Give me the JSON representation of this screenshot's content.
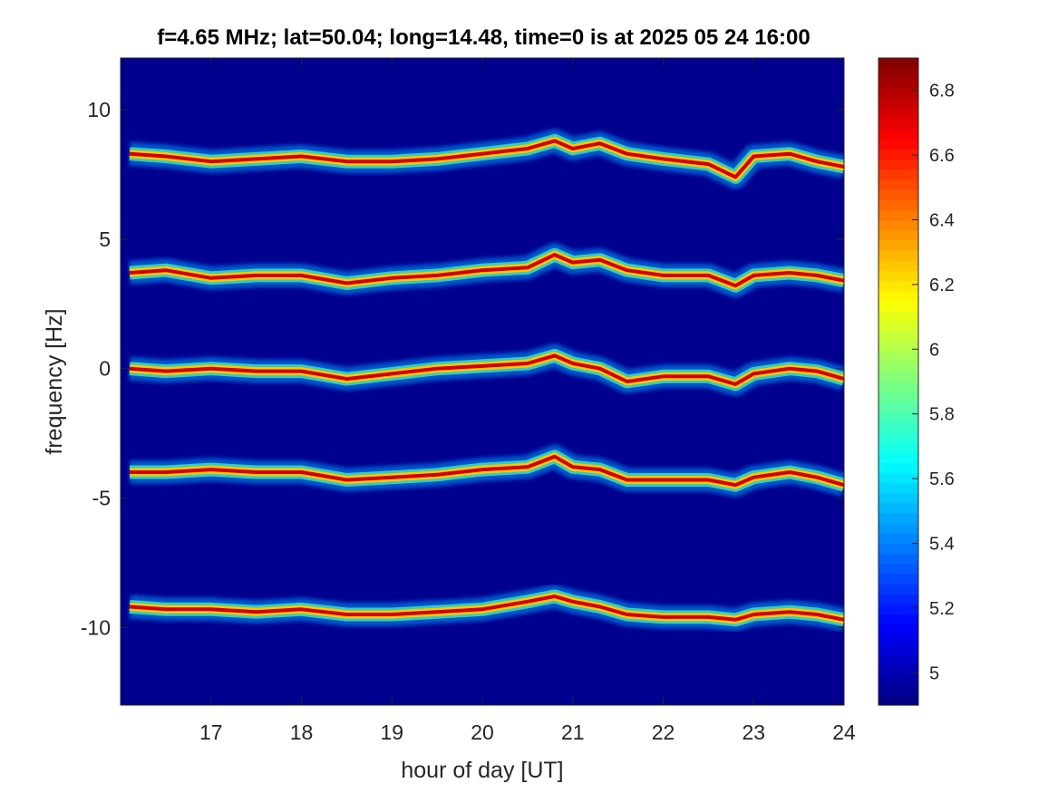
{
  "chart_data": {
    "type": "heatmap",
    "title": "f=4.65 MHz;  lat=50.04; long=14.48, time=0 is at 2025 05 24 16:00",
    "xlabel": "hour of day [UT]",
    "ylabel": "frequency [Hz]",
    "xlim": [
      16,
      24
    ],
    "ylim": [
      -13,
      12
    ],
    "xticks": [
      17,
      18,
      19,
      20,
      21,
      22,
      23,
      24
    ],
    "yticks": [
      10,
      5,
      0,
      -5,
      -10
    ],
    "colormap": "jet",
    "background_color": "#00008f",
    "colorbar": {
      "range": [
        4.9,
        6.9
      ],
      "ticks": [
        6.8,
        6.6,
        6.4,
        6.2,
        6,
        5.8,
        5.6,
        5.4,
        5.2,
        5
      ]
    },
    "traces": [
      {
        "name": "",
        "x": [
          16.1,
          16.5,
          17,
          17.5,
          18,
          18.5,
          19,
          19.5,
          20,
          20.5,
          20.8,
          21,
          21.3,
          21.6,
          22,
          22.5,
          22.8,
          23,
          23.4,
          23.7,
          24
        ],
        "y": [
          8.3,
          8.2,
          8.0,
          8.1,
          8.2,
          8.0,
          8.0,
          8.1,
          8.3,
          8.5,
          8.8,
          8.5,
          8.7,
          8.3,
          8.1,
          7.9,
          7.4,
          8.2,
          8.3,
          8.0,
          7.8
        ]
      },
      {
        "name": "",
        "x": [
          16.1,
          16.5,
          17,
          17.5,
          18,
          18.5,
          19,
          19.5,
          20,
          20.5,
          20.8,
          21,
          21.3,
          21.6,
          22,
          22.5,
          22.8,
          23,
          23.4,
          23.7,
          24
        ],
        "y": [
          3.7,
          3.8,
          3.5,
          3.6,
          3.6,
          3.3,
          3.5,
          3.6,
          3.8,
          3.9,
          4.4,
          4.1,
          4.2,
          3.8,
          3.6,
          3.6,
          3.2,
          3.6,
          3.7,
          3.6,
          3.4
        ]
      },
      {
        "name": "",
        "x": [
          16.1,
          16.5,
          17,
          17.5,
          18,
          18.5,
          19,
          19.5,
          20,
          20.5,
          20.8,
          21,
          21.3,
          21.6,
          22,
          22.5,
          22.8,
          23,
          23.4,
          23.7,
          24
        ],
        "y": [
          0.0,
          -0.1,
          0.0,
          -0.1,
          -0.1,
          -0.4,
          -0.2,
          0.0,
          0.1,
          0.2,
          0.5,
          0.2,
          0.0,
          -0.5,
          -0.3,
          -0.3,
          -0.6,
          -0.2,
          0.0,
          -0.1,
          -0.4
        ]
      },
      {
        "name": "",
        "x": [
          16.1,
          16.5,
          17,
          17.5,
          18,
          18.5,
          19,
          19.5,
          20,
          20.5,
          20.8,
          21,
          21.3,
          21.6,
          22,
          22.5,
          22.8,
          23,
          23.4,
          23.7,
          24
        ],
        "y": [
          -4.0,
          -4.0,
          -3.9,
          -4.0,
          -4.0,
          -4.3,
          -4.2,
          -4.1,
          -3.9,
          -3.8,
          -3.4,
          -3.8,
          -3.9,
          -4.3,
          -4.3,
          -4.3,
          -4.5,
          -4.2,
          -4.0,
          -4.2,
          -4.5
        ]
      },
      {
        "name": "",
        "x": [
          16.1,
          16.5,
          17,
          17.5,
          18,
          18.5,
          19,
          19.5,
          20,
          20.5,
          20.8,
          21,
          21.3,
          21.6,
          22,
          22.5,
          22.8,
          23,
          23.4,
          23.7,
          24
        ],
        "y": [
          -9.2,
          -9.3,
          -9.3,
          -9.4,
          -9.3,
          -9.5,
          -9.5,
          -9.4,
          -9.3,
          -9.0,
          -8.8,
          -9.0,
          -9.2,
          -9.5,
          -9.6,
          -9.6,
          -9.7,
          -9.5,
          -9.4,
          -9.5,
          -9.7
        ]
      }
    ]
  }
}
